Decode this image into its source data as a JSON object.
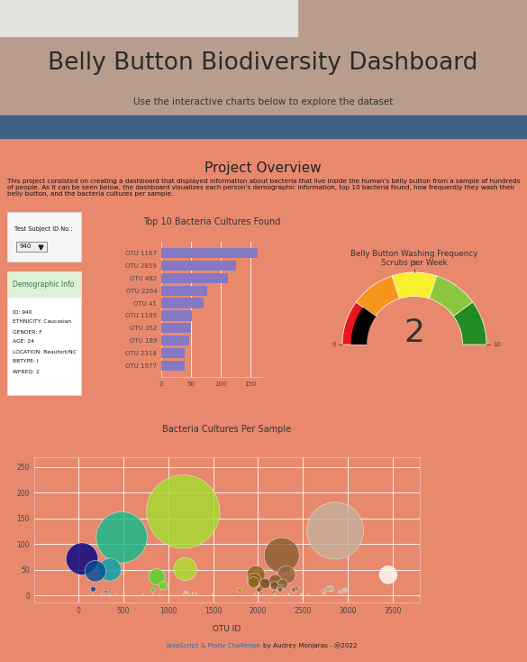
{
  "header": {
    "title": "Belly Button Biodiversity Dashboard",
    "subtitle": "Use the interactive charts below to explore the dataset"
  },
  "overview": {
    "title": "Project Overview",
    "text": "This project consisted on creating a dashboard that displayed information about bacteria that live inside the human's belly button from a sample of hundreds of people. As it can be seen below, the dashboard visualizes each person's demographic information, top 10 bacteria found, how frequently they wash their belly button, and the bacteria cultures per sample."
  },
  "selector": {
    "label": "Test Subject ID No.:",
    "value": "940"
  },
  "demographics": {
    "title": "Demographic Info",
    "lines": [
      "ID: 940",
      "ETHNICITY: Caucasian",
      "GENDER: F",
      "AGE: 24",
      "LOCATION: Beaufort/NC",
      "BBTYPE: I",
      "WFREQ: 2"
    ]
  },
  "chart_data": [
    {
      "type": "bar",
      "orientation": "horizontal",
      "title": "Top 10 Bacteria Cultures Found",
      "categories": [
        "OTU 1167",
        "OTU 2859",
        "OTU 482",
        "OTU 2264",
        "OTU 41",
        "OTU 1189",
        "OTU 352",
        "OTU 189",
        "OTU 2318",
        "OTU 1977"
      ],
      "values": [
        163,
        126,
        113,
        78,
        71,
        51,
        50,
        47,
        40,
        40
      ],
      "color": "#8579c6",
      "xlim": [
        0,
        170
      ],
      "xticks": [
        0,
        50,
        100,
        150
      ],
      "grid": true
    },
    {
      "type": "gauge",
      "title": "Belly Button Washing Frequency",
      "subtitle": "Scrubs per Week",
      "value": 2,
      "range": [
        0,
        10
      ],
      "ticks": [
        0,
        5,
        10
      ],
      "color": "black",
      "steps": [
        {
          "range": [
            0,
            2
          ],
          "color": "#e8141c"
        },
        {
          "range": [
            2,
            4
          ],
          "color": "#f7941d"
        },
        {
          "range": [
            4,
            6
          ],
          "color": "#f7f02c"
        },
        {
          "range": [
            6,
            8
          ],
          "color": "#8cc63f"
        },
        {
          "range": [
            8,
            10
          ],
          "color": "#228b22"
        }
      ]
    },
    {
      "type": "bubble",
      "title": "Bacteria Cultures Per Sample",
      "x_label": "OTU ID",
      "x": [
        1167,
        2859,
        482,
        2264,
        41,
        1189,
        352,
        189,
        2318,
        1977,
        3450,
        874,
        1959,
        2191,
        1950,
        2077,
        2275,
        944,
        2184,
        2244,
        2024,
        2419,
        2811,
        165,
        2782,
        2247,
        2011,
        2396,
        830,
        2964,
        1795,
        2722,
        307,
        2178,
        2908,
        1193,
        2167,
        1208,
        2039,
        1274,
        2739,
        2737,
        1314,
        1962,
        2186,
        2335,
        2936,
        907,
        833,
        2483,
        2475,
        2491,
        2291,
        159,
        2571,
        2350,
        2342,
        2546,
        725,
        170,
        1505,
        513,
        259,
        1169,
        258,
        1232,
        1497,
        1498,
        1503,
        412,
        2235,
        1960,
        1968,
        121,
        2065,
        340,
        2110,
        2188,
        357,
        342
      ],
      "values": [
        163,
        126,
        113,
        78,
        71,
        51,
        50,
        47,
        40,
        40,
        40,
        36,
        30,
        28,
        25,
        23,
        22,
        19,
        19,
        14,
        13,
        13,
        13,
        12,
        12,
        11,
        11,
        11,
        10,
        10,
        10,
        8,
        7,
        7,
        7,
        6,
        5,
        5,
        5,
        4,
        4,
        4,
        3,
        3,
        3,
        3,
        3,
        2,
        2,
        2,
        2,
        2,
        2,
        2,
        2,
        2,
        2,
        2,
        2,
        2,
        2,
        2,
        2,
        2,
        2,
        2,
        2,
        2,
        2,
        2,
        1,
        1,
        1,
        1,
        1,
        1,
        1,
        1,
        1,
        1
      ],
      "xlim": [
        -491,
        3801
      ],
      "xticks": [
        0,
        500,
        1000,
        1500,
        2000,
        2500,
        3000,
        3500
      ],
      "ylim": [
        -14,
        269
      ],
      "yticks": [
        0,
        50,
        100,
        150,
        200,
        250
      ],
      "grid": true
    }
  ],
  "footer": {
    "link": "JavaScript & Plotly Challenge",
    "text": "by Audrey Monjaras - @2022"
  }
}
